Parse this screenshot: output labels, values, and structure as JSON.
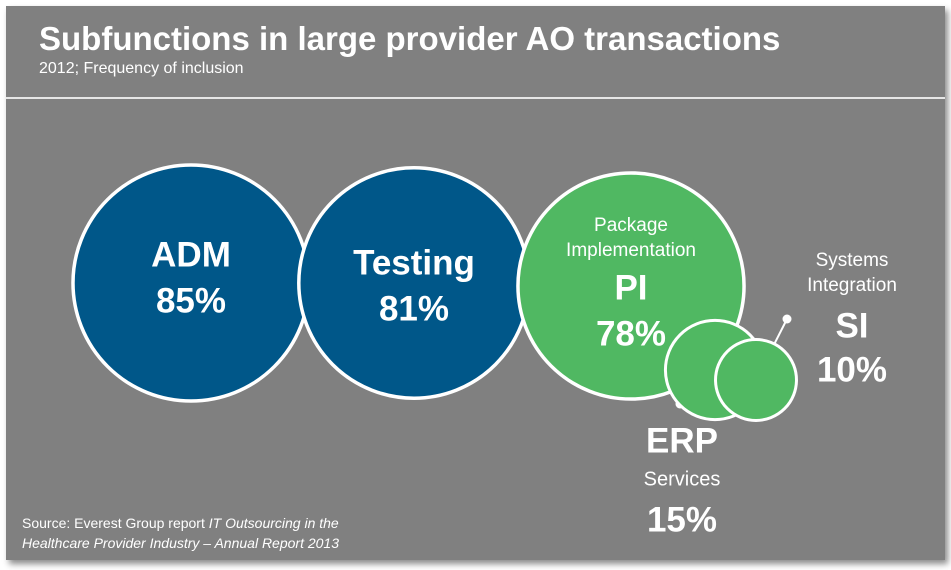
{
  "header": {
    "title": "Subfunctions in large provider AO transactions",
    "subtitle": "2012; Frequency of inclusion"
  },
  "colors": {
    "background": "#808080",
    "blue": "#005789",
    "green": "#50b862",
    "outline": "#ffffff"
  },
  "chart_data": {
    "type": "bubble",
    "title": "Subfunctions in large provider AO transactions",
    "subtitle": "2012; Frequency of inclusion",
    "unit": "%",
    "series": [
      {
        "abbr": "ADM",
        "name": "",
        "value": 85,
        "value_label": "85%",
        "color": "#005789"
      },
      {
        "abbr": "Testing",
        "name": "",
        "value": 81,
        "value_label": "81%",
        "color": "#005789"
      },
      {
        "abbr": "PI",
        "name": "Package Implementation",
        "value": 78,
        "value_label": "78%",
        "color": "#50b862"
      },
      {
        "abbr": "ERP",
        "name": "Services",
        "value": 15,
        "value_label": "15%",
        "color": "#50b862"
      },
      {
        "abbr": "SI",
        "name": "Systems Integration",
        "value": 10,
        "value_label": "10%",
        "color": "#50b862"
      }
    ]
  },
  "source": {
    "prefix": "Source: Everest Group report ",
    "italic_line1": "IT Outsourcing in the",
    "italic_line2": "Healthcare Provider Industry – Annual Report 2013"
  }
}
